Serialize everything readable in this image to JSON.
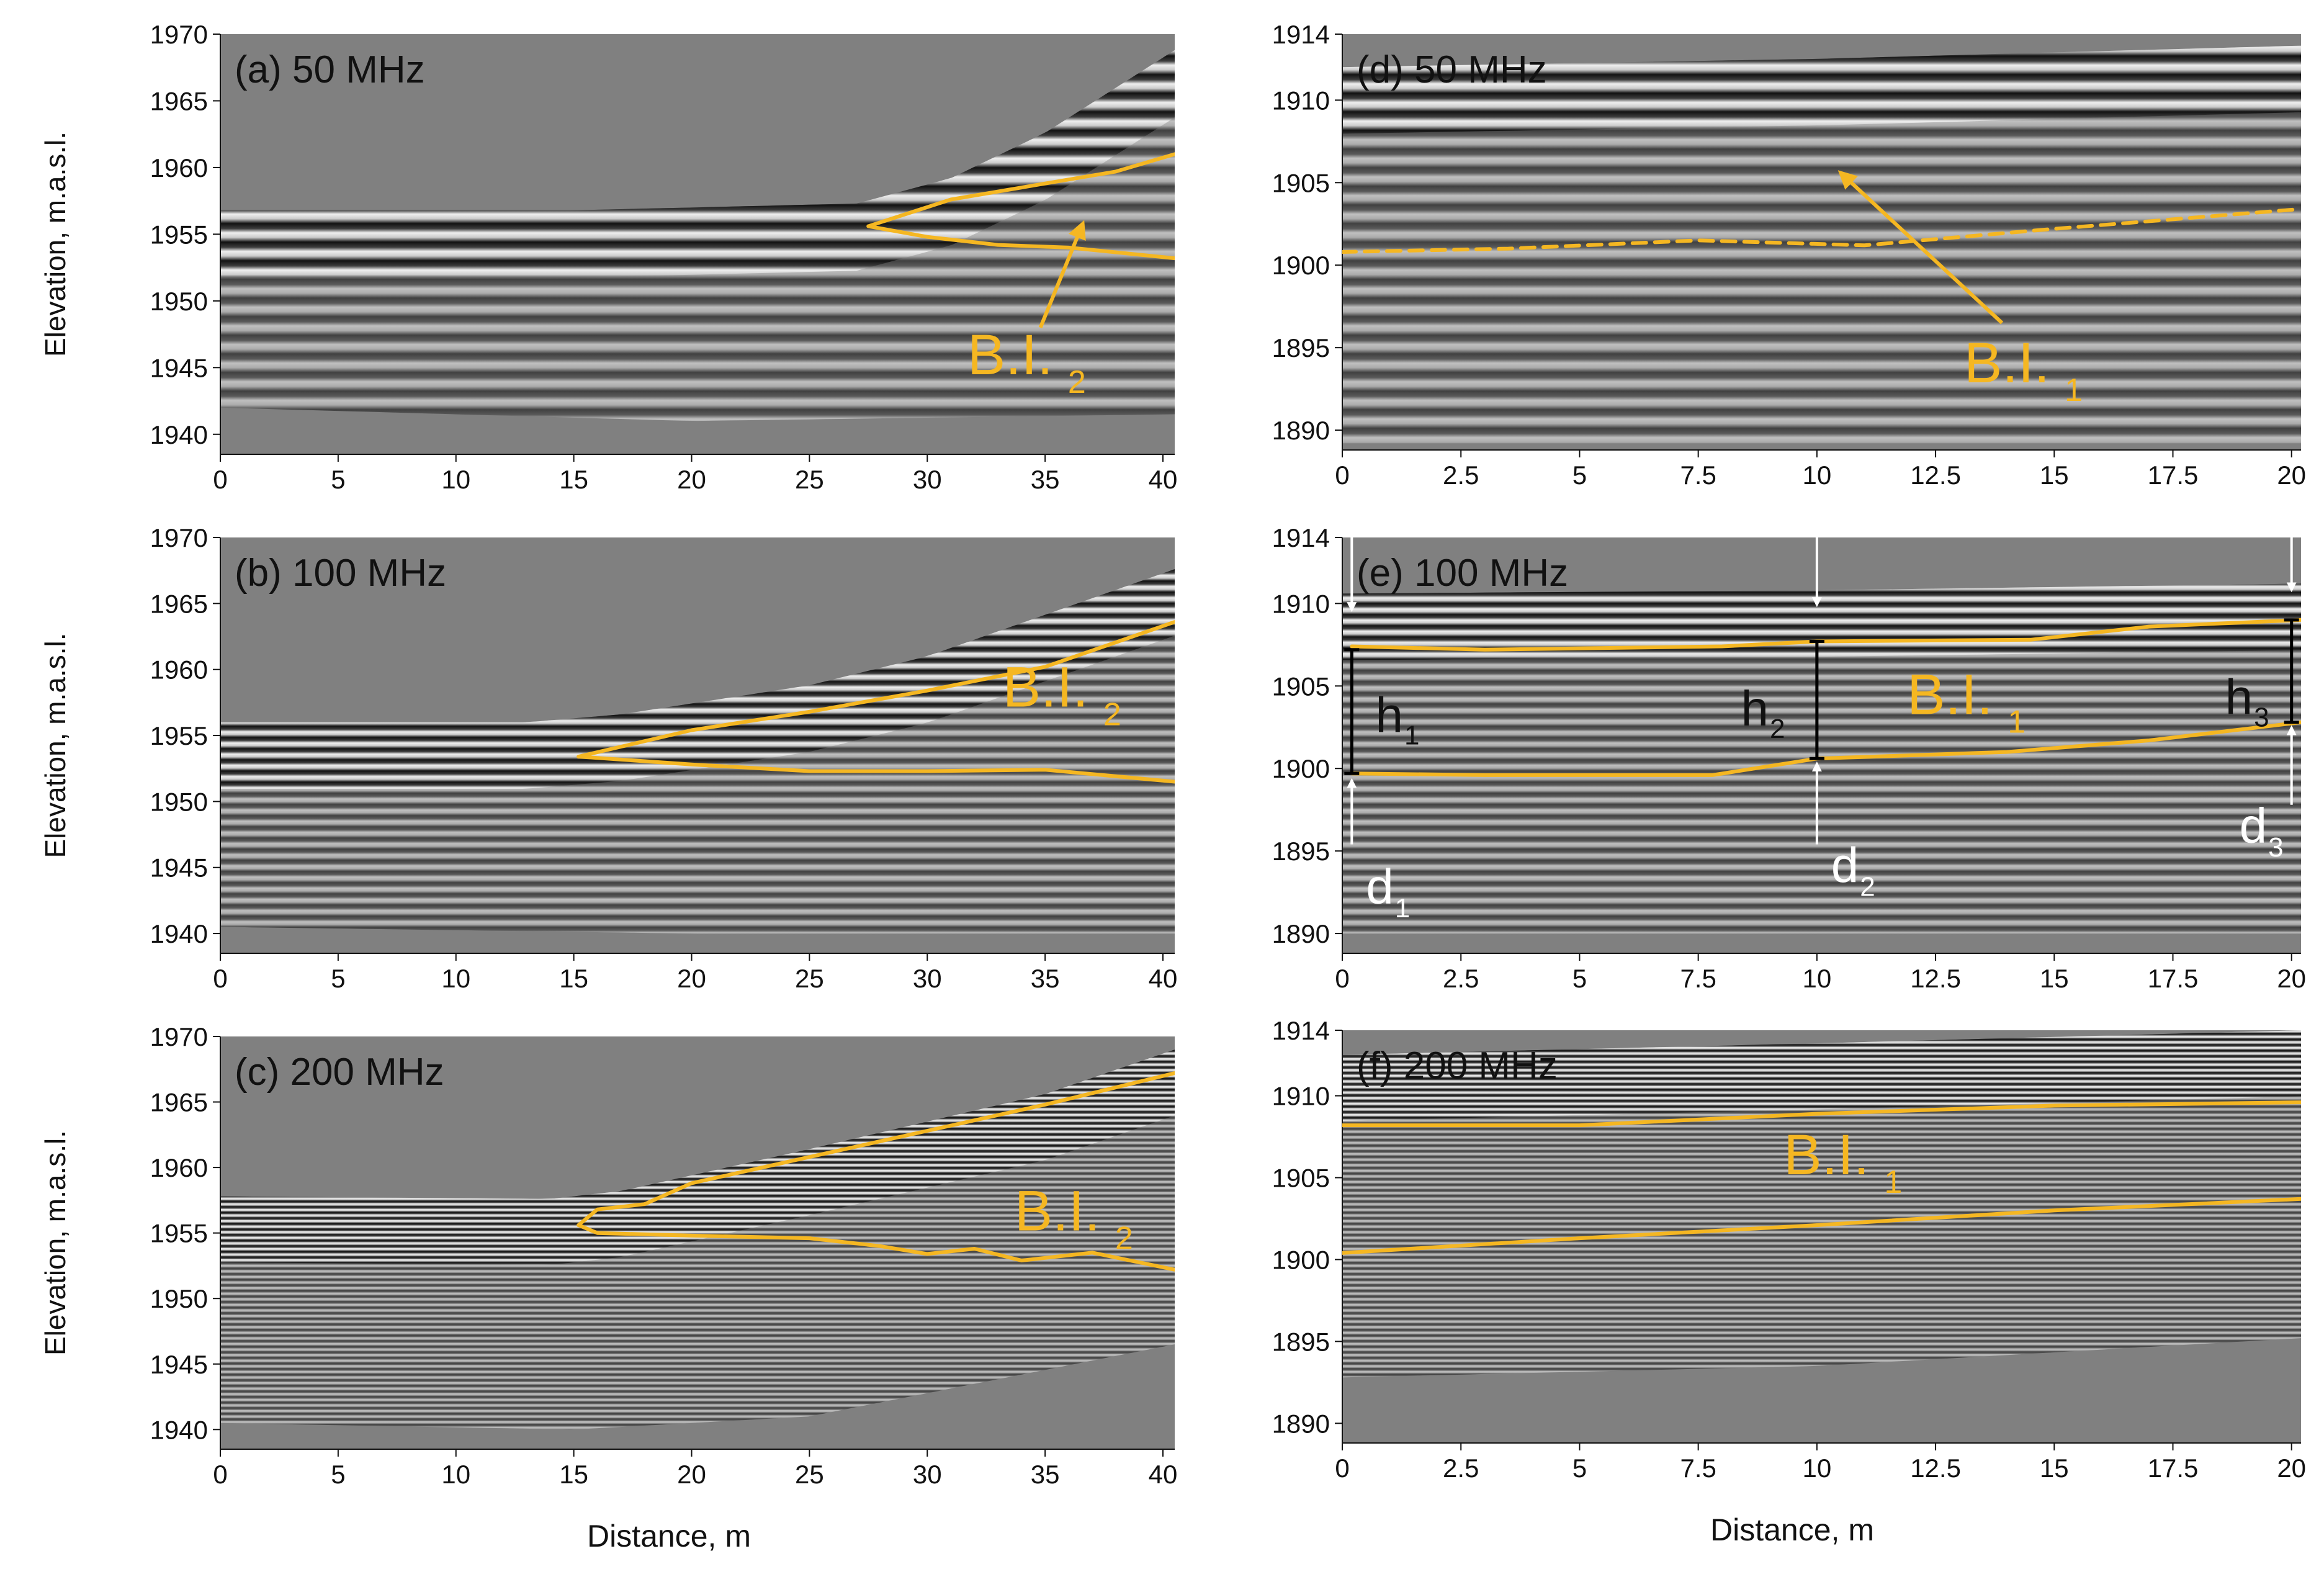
{
  "figure": {
    "common_xlabel": "Distance, m",
    "common_ylabel": "Elevation, m.a.s.l.",
    "colors": {
      "interpretation": "#f5b722",
      "radargram_background": "#808080",
      "reflection_dark": "#000000",
      "reflection_light": "#ffffff",
      "measurement_bar": "#000000",
      "arrow_white": "#ffffff"
    }
  },
  "chart_data": [
    {
      "id": "a",
      "type": "heatmap",
      "title": "(a) 50 MHz",
      "xlabel": "",
      "ylabel": "Elevation, m.a.s.l.",
      "xlim": [
        0,
        40.5
      ],
      "ylim": [
        1938.5,
        1970
      ],
      "xticks": [
        0,
        5,
        10,
        15,
        20,
        25,
        30,
        35,
        40
      ],
      "yticks": [
        1940,
        1945,
        1950,
        1955,
        1960,
        1965,
        1970
      ],
      "label": {
        "text": "B.I.",
        "sub": "2",
        "x": 31.7,
        "y": 1944.5
      },
      "interpretation_lines": [
        {
          "style": "solid",
          "points": [
            [
              27.5,
              1955.6
            ],
            [
              31,
              1957.6
            ],
            [
              35,
              1958.8
            ],
            [
              38,
              1959.7
            ],
            [
              40.5,
              1961.0
            ]
          ]
        },
        {
          "style": "solid",
          "points": [
            [
              27.5,
              1955.6
            ],
            [
              30,
              1954.8
            ],
            [
              33,
              1954.2
            ],
            [
              36,
              1954.0
            ],
            [
              40.5,
              1953.2
            ]
          ]
        }
      ],
      "arrows": [
        {
          "from": [
            34.8,
            1948.0
          ],
          "to": [
            36.6,
            1955.8
          ]
        }
      ],
      "wave": {
        "mhz": 50,
        "top": [
          [
            0,
            1956.8
          ],
          [
            15,
            1956.8
          ],
          [
            20,
            1957.0
          ],
          [
            27,
            1957.3
          ],
          [
            31,
            1959.2
          ],
          [
            35,
            1962.6
          ],
          [
            40.5,
            1968.8
          ]
        ],
        "bottom": [
          [
            0,
            1942.0
          ],
          [
            10,
            1941.5
          ],
          [
            20,
            1941.0
          ],
          [
            40.5,
            1941.5
          ]
        ]
      }
    },
    {
      "id": "b",
      "type": "heatmap",
      "title": "(b) 100 MHz",
      "xlabel": "",
      "ylabel": "Elevation, m.a.s.l.",
      "xlim": [
        0,
        40.5
      ],
      "ylim": [
        1938.5,
        1970
      ],
      "xticks": [
        0,
        5,
        10,
        15,
        20,
        25,
        30,
        35,
        40
      ],
      "yticks": [
        1940,
        1945,
        1950,
        1955,
        1960,
        1965,
        1970
      ],
      "label": {
        "text": "B.I.",
        "sub": "2",
        "x": 33.2,
        "y": 1957.2
      },
      "interpretation_lines": [
        {
          "style": "solid",
          "points": [
            [
              15.2,
              1953.4
            ],
            [
              20,
              1955.4
            ],
            [
              25,
              1956.8
            ],
            [
              30,
              1958.4
            ],
            [
              35,
              1960.2
            ],
            [
              40.5,
              1963.6
            ]
          ]
        },
        {
          "style": "solid",
          "points": [
            [
              15.2,
              1953.4
            ],
            [
              20,
              1952.8
            ],
            [
              25,
              1952.3
            ],
            [
              30,
              1952.3
            ],
            [
              35,
              1952.4
            ],
            [
              40.5,
              1951.5
            ]
          ]
        }
      ],
      "arrows": [],
      "wave": {
        "mhz": 100,
        "top": [
          [
            0,
            1956.0
          ],
          [
            13,
            1956.0
          ],
          [
            17,
            1956.6
          ],
          [
            25,
            1958.8
          ],
          [
            30,
            1961.0
          ],
          [
            40.5,
            1967.6
          ]
        ],
        "bottom": [
          [
            0,
            1940.5
          ],
          [
            20,
            1940.0
          ],
          [
            40.5,
            1940.0
          ]
        ]
      }
    },
    {
      "id": "c",
      "type": "heatmap",
      "title": "(c) 200 MHz",
      "xlabel": "Distance, m",
      "ylabel": "Elevation, m.a.s.l.",
      "xlim": [
        0,
        40.5
      ],
      "ylim": [
        1938.5,
        1970
      ],
      "xticks": [
        0,
        5,
        10,
        15,
        20,
        25,
        30,
        35,
        40
      ],
      "yticks": [
        1940,
        1945,
        1950,
        1955,
        1960,
        1965,
        1970
      ],
      "label": {
        "text": "B.I.",
        "sub": "2",
        "x": 33.7,
        "y": 1955.2
      },
      "interpretation_lines": [
        {
          "style": "solid",
          "points": [
            [
              15.2,
              1955.6
            ],
            [
              16,
              1956.8
            ],
            [
              18,
              1957.2
            ],
            [
              20,
              1958.8
            ],
            [
              25,
              1960.8
            ],
            [
              30,
              1962.8
            ],
            [
              35,
              1964.8
            ],
            [
              40.5,
              1967.2
            ]
          ]
        },
        {
          "style": "solid",
          "points": [
            [
              15.2,
              1955.6
            ],
            [
              16,
              1955.0
            ],
            [
              20,
              1954.8
            ],
            [
              25,
              1954.6
            ],
            [
              28,
              1954.0
            ],
            [
              30,
              1953.4
            ],
            [
              32,
              1953.8
            ],
            [
              34,
              1952.9
            ],
            [
              37,
              1953.5
            ],
            [
              40.5,
              1952.2
            ]
          ]
        }
      ],
      "arrows": [],
      "wave": {
        "mhz": 200,
        "top": [
          [
            0,
            1957.8
          ],
          [
            14,
            1957.6
          ],
          [
            17,
            1958.2
          ],
          [
            25,
            1961.4
          ],
          [
            35,
            1965.6
          ],
          [
            40.5,
            1969.0
          ]
        ],
        "bottom": [
          [
            0,
            1940.5
          ],
          [
            15,
            1940.0
          ],
          [
            25,
            1941.0
          ],
          [
            40.5,
            1946.5
          ]
        ]
      }
    },
    {
      "id": "d",
      "type": "heatmap",
      "title": "(d) 50 MHz",
      "xlabel": "",
      "ylabel": "",
      "xlim": [
        0,
        20.2
      ],
      "ylim": [
        1888.8,
        1914
      ],
      "xticks": [
        0,
        2.5,
        5,
        7.5,
        10,
        12.5,
        15,
        17.5,
        20
      ],
      "xticklabels": [
        "0",
        "2.5",
        "5",
        "7.5",
        "10",
        "12.5",
        "15",
        "17.5",
        "20"
      ],
      "yticks": [
        1890,
        1895,
        1900,
        1905,
        1910,
        1914
      ],
      "label": {
        "text": "B.I.",
        "sub": "1",
        "x": 13.1,
        "y": 1892.9
      },
      "interpretation_lines": [
        {
          "style": "dashed",
          "points": [
            [
              0,
              1900.8
            ],
            [
              3.5,
              1901.0
            ],
            [
              7.5,
              1901.5
            ],
            [
              11,
              1901.2
            ],
            [
              15,
              1902.2
            ],
            [
              20.2,
              1903.4
            ]
          ]
        }
      ],
      "arrows": [
        {
          "from": [
            13.9,
            1896.5
          ],
          "to": [
            10.5,
            1905.6
          ]
        }
      ],
      "wave": {
        "mhz": 50,
        "top": [
          [
            0,
            1912.0
          ],
          [
            10,
            1912.5
          ],
          [
            20.2,
            1913.3
          ]
        ],
        "bottom": [
          [
            0,
            1889.2
          ],
          [
            20.2,
            1889.2
          ]
        ]
      }
    },
    {
      "id": "e",
      "type": "heatmap",
      "title": "(e) 100 MHz",
      "xlabel": "",
      "ylabel": "",
      "xlim": [
        0,
        20.2
      ],
      "ylim": [
        1888.8,
        1914
      ],
      "xticks": [
        0,
        2.5,
        5,
        7.5,
        10,
        12.5,
        15,
        17.5,
        20
      ],
      "xticklabels": [
        "0",
        "2.5",
        "5",
        "7.5",
        "10",
        "12.5",
        "15",
        "17.5",
        "20"
      ],
      "yticks": [
        1890,
        1895,
        1900,
        1905,
        1910,
        1914
      ],
      "label": {
        "text": "B.I.",
        "sub": "1",
        "x": 11.9,
        "y": 1903.3
      },
      "interpretation_lines": [
        {
          "style": "solid",
          "points": [
            [
              0.2,
              1907.4
            ],
            [
              3,
              1907.2
            ],
            [
              8,
              1907.4
            ],
            [
              10,
              1907.7
            ],
            [
              14.5,
              1907.8
            ],
            [
              17,
              1908.6
            ],
            [
              20.2,
              1909.0
            ]
          ]
        },
        {
          "style": "solid",
          "points": [
            [
              0.2,
              1899.7
            ],
            [
              3,
              1899.6
            ],
            [
              7.8,
              1899.6
            ],
            [
              10,
              1900.6
            ],
            [
              14,
              1901.0
            ],
            [
              17,
              1901.7
            ],
            [
              20.2,
              1902.8
            ]
          ]
        }
      ],
      "measurements": [
        {
          "x": 0.2,
          "y_top": 1907.2,
          "y_bottom": 1899.7,
          "label": "h",
          "sub": "1",
          "lx": 0.7,
          "ly": 1902.2,
          "dlabel": "d",
          "dsub": "1",
          "dlx": 0.5,
          "dly": 1891.8
        },
        {
          "x": 10.0,
          "y_top": 1907.7,
          "y_bottom": 1900.6,
          "label": "h",
          "sub": "2",
          "lx": 8.4,
          "ly": 1902.6,
          "dlabel": "d",
          "dsub": "2",
          "dlx": 10.3,
          "dly": 1893.1
        },
        {
          "x": 20.0,
          "y_top": 1909.0,
          "y_bottom": 1902.8,
          "label": "h",
          "sub": "3",
          "lx": 18.6,
          "ly": 1903.3,
          "dlabel": "d",
          "dsub": "3",
          "dlx": 18.9,
          "dly": 1895.5
        }
      ],
      "arrows_white": [
        {
          "from": [
            0.2,
            1914.0
          ],
          "to": [
            0.2,
            1909.6
          ]
        },
        {
          "from": [
            10.0,
            1914.0
          ],
          "to": [
            10.0,
            1909.9
          ]
        },
        {
          "from": [
            20.0,
            1914.0
          ],
          "to": [
            20.0,
            1910.8
          ]
        },
        {
          "from": [
            0.2,
            1895.4
          ],
          "to": [
            0.2,
            1899.3
          ]
        },
        {
          "from": [
            10.0,
            1895.4
          ],
          "to": [
            10.0,
            1900.3
          ]
        },
        {
          "from": [
            20.0,
            1897.8
          ],
          "to": [
            20.0,
            1902.5
          ]
        }
      ],
      "arrows": [],
      "wave": {
        "mhz": 100,
        "top": [
          [
            0,
            1910.6
          ],
          [
            10,
            1910.8
          ],
          [
            20.2,
            1911.2
          ]
        ],
        "bottom": [
          [
            0,
            1890.0
          ],
          [
            20.2,
            1890.0
          ]
        ]
      }
    },
    {
      "id": "f",
      "type": "heatmap",
      "title": "(f) 200 MHz",
      "xlabel": "Distance, m",
      "ylabel": "",
      "xlim": [
        0,
        20.2
      ],
      "ylim": [
        1888.8,
        1914
      ],
      "xticks": [
        0,
        2.5,
        5,
        7.5,
        10,
        12.5,
        15,
        17.5,
        20
      ],
      "xticklabels": [
        "0",
        "2.5",
        "5",
        "7.5",
        "10",
        "12.5",
        "15",
        "17.5",
        "20"
      ],
      "yticks": [
        1890,
        1895,
        1900,
        1905,
        1910,
        1914
      ],
      "label": {
        "text": "B.I.",
        "sub": "1",
        "x": 9.3,
        "y": 1905.2
      },
      "interpretation_lines": [
        {
          "style": "solid",
          "points": [
            [
              0,
              1908.2
            ],
            [
              5,
              1908.2
            ],
            [
              10,
              1908.9
            ],
            [
              15,
              1909.4
            ],
            [
              20.2,
              1909.6
            ]
          ]
        },
        {
          "style": "solid",
          "points": [
            [
              0,
              1900.4
            ],
            [
              5,
              1901.3
            ],
            [
              10,
              1902.1
            ],
            [
              15,
              1903.0
            ],
            [
              20.2,
              1903.7
            ]
          ]
        }
      ],
      "arrows": [],
      "wave": {
        "mhz": 200,
        "top": [
          [
            0,
            1912.5
          ],
          [
            10,
            1913.2
          ],
          [
            20.2,
            1914.0
          ]
        ],
        "bottom": [
          [
            0,
            1892.8
          ],
          [
            10,
            1893.5
          ],
          [
            20.2,
            1895.2
          ]
        ]
      }
    }
  ]
}
